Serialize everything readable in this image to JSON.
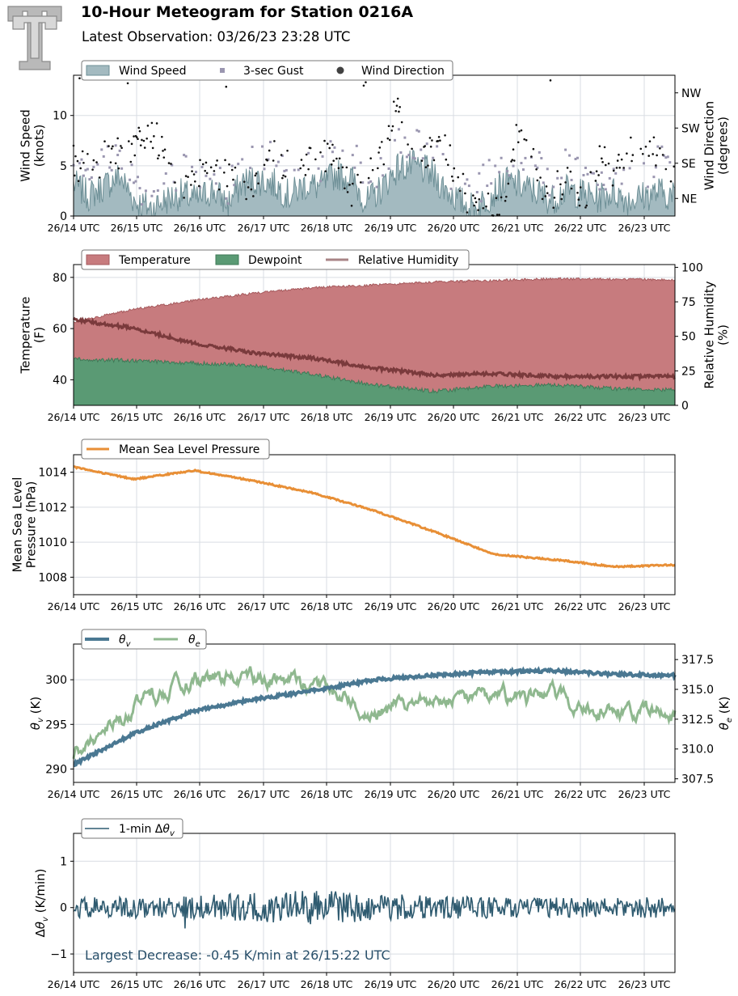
{
  "header": {
    "title": "10-Hour Meteogram for Station 0216A",
    "subtitle": "Latest Observation: 03/26/23 23:28 UTC",
    "logo_icon": "texas-tech-double-t-logo"
  },
  "colors": {
    "wind_fill": "#a3bac0",
    "wind_line": "#6d8f96",
    "gust": "#9a96b0",
    "direction": "#111111",
    "temperature": "#c77b7e",
    "dewpoint": "#5a9a74",
    "rh": "#7a3a3c",
    "pressure": "#e88f36",
    "theta_v": "#4a7892",
    "theta_e": "#8fb88f",
    "dtheta": "#2f5b70",
    "annotation": "#284f6a"
  },
  "chart_data": [
    {
      "id": "wind",
      "type": "area",
      "legend": [
        "Wind Speed",
        "3-sec Gust",
        "Wind Direction"
      ],
      "ylabel": "Wind Speed\n(knots)",
      "ylabel2": "Wind Direction\n(degrees)",
      "ylim": [
        0,
        14
      ],
      "yticks": [
        0,
        5,
        10
      ],
      "y2ticks": [
        "NE",
        "SE",
        "SW",
        "NW"
      ],
      "y2tick_values": [
        45,
        135,
        225,
        315
      ],
      "y2lim": [
        0,
        360
      ],
      "x": [
        "26/14 UTC",
        "26/15 UTC",
        "26/16 UTC",
        "26/17 UTC",
        "26/18 UTC",
        "26/19 UTC",
        "26/20 UTC",
        "26/21 UTC",
        "26/22 UTC",
        "26/23 UTC"
      ],
      "speed_knots": [
        3.2,
        2.0,
        3.0,
        4.0,
        1.4,
        0.8,
        1.6,
        2.2,
        1.6,
        2.6,
        1.2,
        3.4,
        3.6,
        3.2,
        2.0,
        3.1,
        2.9,
        4.2,
        3.8,
        1.3,
        2.8,
        4.8,
        5.0,
        4.4,
        2.9,
        1.5,
        0.7,
        2.0,
        3.4,
        3.0,
        2.4,
        1.6,
        2.6,
        2.2,
        1.8,
        2.4,
        1.6,
        2.0,
        2.4,
        1.9
      ],
      "gust_knots": [
        5.9,
        5.0,
        5.8,
        6.1,
        3.6,
        1.9,
        3.0,
        4.6,
        3.8,
        5.3,
        2.7,
        5.7,
        6.3,
        5.9,
        4.8,
        5.6,
        5.0,
        6.9,
        6.6,
        3.2,
        5.2,
        7.0,
        7.3,
        6.9,
        5.1,
        3.0,
        2.1,
        4.4,
        6.0,
        5.2,
        4.9,
        3.4,
        5.0,
        4.6,
        4.1,
        4.7,
        3.5,
        4.0,
        5.4,
        4.4
      ],
      "direction_deg": [
        135,
        120,
        150,
        160,
        185,
        215,
        160,
        75,
        110,
        95,
        120,
        40,
        80,
        160,
        125,
        130,
        170,
        135,
        60,
        100,
        150,
        280,
        135,
        160,
        190,
        75,
        30,
        20,
        60,
        250,
        100,
        60,
        90,
        30,
        140,
        120,
        160,
        200,
        150,
        100
      ]
    },
    {
      "id": "thermo",
      "type": "area",
      "legend": [
        "Temperature",
        "Dewpoint",
        "Relative Humidity"
      ],
      "ylabel": "Temperature\n(F)",
      "ylabel2": "Relative Humidity\n(%)",
      "ylim": [
        30,
        85
      ],
      "yticks": [
        40,
        60,
        80
      ],
      "y2lim": [
        0,
        102
      ],
      "y2ticks": [
        0,
        25,
        50,
        75,
        100
      ],
      "x": [
        "26/14 UTC",
        "26/15 UTC",
        "26/16 UTC",
        "26/17 UTC",
        "26/18 UTC",
        "26/19 UTC",
        "26/20 UTC",
        "26/21 UTC",
        "26/22 UTC",
        "26/23 UTC"
      ],
      "temperature_f": [
        62.5,
        67.5,
        71.0,
        73.8,
        76.0,
        77.0,
        78.2,
        78.8,
        79.5,
        79.3,
        79.0
      ],
      "dewpoint_f": [
        48.0,
        47.5,
        46.5,
        45.5,
        42.0,
        38.0,
        35.5,
        37.5,
        38.0,
        36.5,
        36.0
      ],
      "rh_pct": [
        62,
        56,
        45,
        38,
        34,
        27,
        22,
        23,
        21,
        21,
        21
      ]
    },
    {
      "id": "pressure",
      "type": "line",
      "legend": [
        "Mean Sea Level Pressure"
      ],
      "ylabel": "Mean Sea Level\nPressure (hPa)",
      "ylim": [
        1007.0,
        1015.0
      ],
      "yticks": [
        1008,
        1010,
        1012,
        1014
      ],
      "x": [
        "26/14 UTC",
        "26/15 UTC",
        "26/16 UTC",
        "26/17 UTC",
        "26/18 UTC",
        "26/19 UTC",
        "26/20 UTC",
        "26/21 UTC",
        "26/22 UTC",
        "26/23 UTC"
      ],
      "mslp_hpa": [
        1014.3,
        1013.6,
        1014.1,
        1013.5,
        1012.8,
        1011.8,
        1010.6,
        1009.3,
        1009.0,
        1008.6,
        1008.7
      ]
    },
    {
      "id": "theta",
      "type": "line",
      "legend": [
        "θv",
        "θe"
      ],
      "ylabel": "θv (K)",
      "ylabel2": "θe (K)",
      "ylim": [
        288.5,
        304
      ],
      "yticks": [
        290,
        295,
        300
      ],
      "y2lim": [
        307.2,
        318.8
      ],
      "y2ticks": [
        307.5,
        310.0,
        312.5,
        315.0,
        317.5
      ],
      "x": [
        "26/14 UTC",
        "26/15 UTC",
        "26/16 UTC",
        "26/17 UTC",
        "26/18 UTC",
        "26/19 UTC",
        "26/20 UTC",
        "26/21 UTC",
        "26/22 UTC",
        "26/23 UTC"
      ],
      "theta_v_k": [
        290.5,
        294.0,
        296.5,
        297.8,
        298.8,
        300.0,
        300.5,
        300.9,
        301.0,
        300.6,
        300.5
      ],
      "theta_e_k": [
        309.5,
        313.6,
        315.8,
        316.0,
        315.5,
        313.0,
        314.0,
        314.0,
        314.2,
        313.5,
        313.2
      ]
    },
    {
      "id": "dtheta",
      "type": "line",
      "legend": [
        "1-min Δθv"
      ],
      "ylabel": "Δθv (K/min)",
      "ylim": [
        -1.4,
        1.6
      ],
      "yticks": [
        -1,
        0,
        1
      ],
      "x": [
        "26/14 UTC",
        "26/15 UTC",
        "26/16 UTC",
        "26/17 UTC",
        "26/18 UTC",
        "26/19 UTC",
        "26/20 UTC",
        "26/21 UTC",
        "26/22 UTC",
        "26/23 UTC"
      ],
      "annotation": "Largest Decrease: -0.45 K/min at 26/15:22 UTC"
    }
  ]
}
